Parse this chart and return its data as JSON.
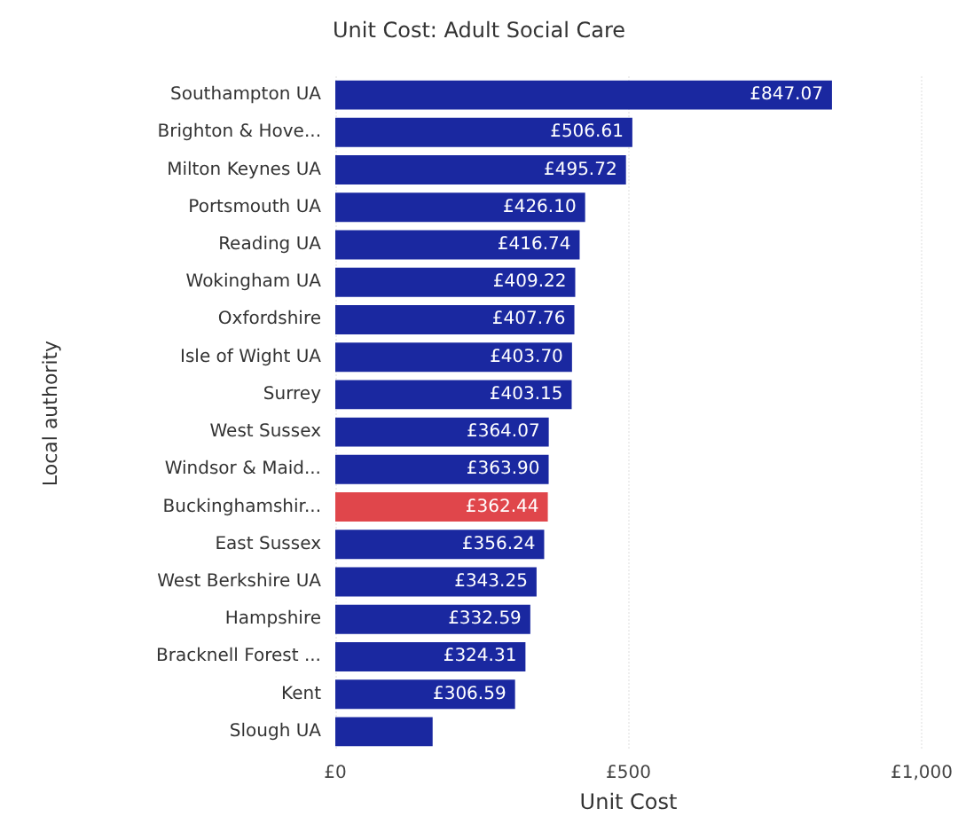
{
  "chart_data": {
    "type": "bar",
    "orientation": "horizontal",
    "title": "Unit Cost: Adult Social Care",
    "xlabel": "Unit Cost",
    "ylabel": "Local authority",
    "categories": [
      "Southampton UA",
      "Brighton & Hove...",
      "Milton Keynes UA",
      "Portsmouth UA",
      "Reading UA",
      "Wokingham UA",
      "Oxfordshire",
      "Isle of Wight UA",
      "Surrey",
      "West Sussex",
      "Windsor & Maid...",
      "Buckinghamshir...",
      "East Sussex",
      "West Berkshire UA",
      "Hampshire",
      "Bracknell Forest ...",
      "Kent",
      "Slough UA"
    ],
    "values": [
      847.07,
      506.61,
      495.72,
      426.1,
      416.74,
      409.22,
      407.76,
      403.7,
      403.15,
      364.07,
      363.9,
      362.44,
      356.24,
      343.25,
      332.59,
      324.31,
      306.59,
      166
    ],
    "value_labels": [
      "£847.07",
      "£506.61",
      "£495.72",
      "£426.10",
      "£416.74",
      "£409.22",
      "£407.76",
      "£403.70",
      "£403.15",
      "£364.07",
      "£363.90",
      "£362.44",
      "£356.24",
      "£343.25",
      "£332.59",
      "£324.31",
      "£306.59",
      null
    ],
    "colors": [
      "#1a28a0",
      "#1a28a0",
      "#1a28a0",
      "#1a28a0",
      "#1a28a0",
      "#1a28a0",
      "#1a28a0",
      "#1a28a0",
      "#1a28a0",
      "#1a28a0",
      "#1a28a0",
      "#e0464b",
      "#1a28a0",
      "#1a28a0",
      "#1a28a0",
      "#1a28a0",
      "#1a28a0",
      "#1a28a0"
    ],
    "xlim": [
      0,
      1000
    ],
    "xticks": [
      {
        "value": 0,
        "label": "£0"
      },
      {
        "value": 500,
        "label": "£500"
      },
      {
        "value": 1000,
        "label": "£1,000"
      }
    ],
    "grid": "x"
  }
}
